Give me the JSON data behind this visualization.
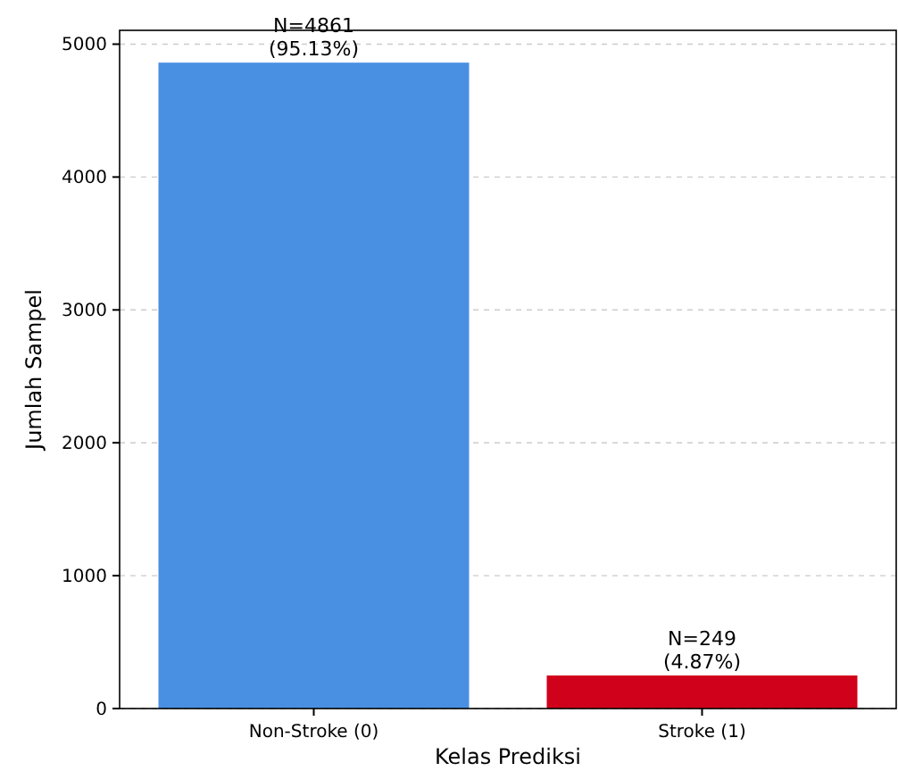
{
  "chart_data": {
    "type": "bar",
    "xlabel": "Kelas Prediksi",
    "ylabel": "Jumlah Sampel",
    "categories": [
      "Non-Stroke (0)",
      "Stroke (1)"
    ],
    "values": [
      4861,
      249
    ],
    "colors": [
      "#4a90e2",
      "#d0021b"
    ],
    "value_labels": [
      "N=4861\n(95.13%)",
      "N=249\n(4.87%)"
    ],
    "ylim": [
      0,
      5104
    ],
    "yticks": [
      0,
      1000,
      2000,
      3000,
      4000,
      5000
    ],
    "grid": "y"
  }
}
